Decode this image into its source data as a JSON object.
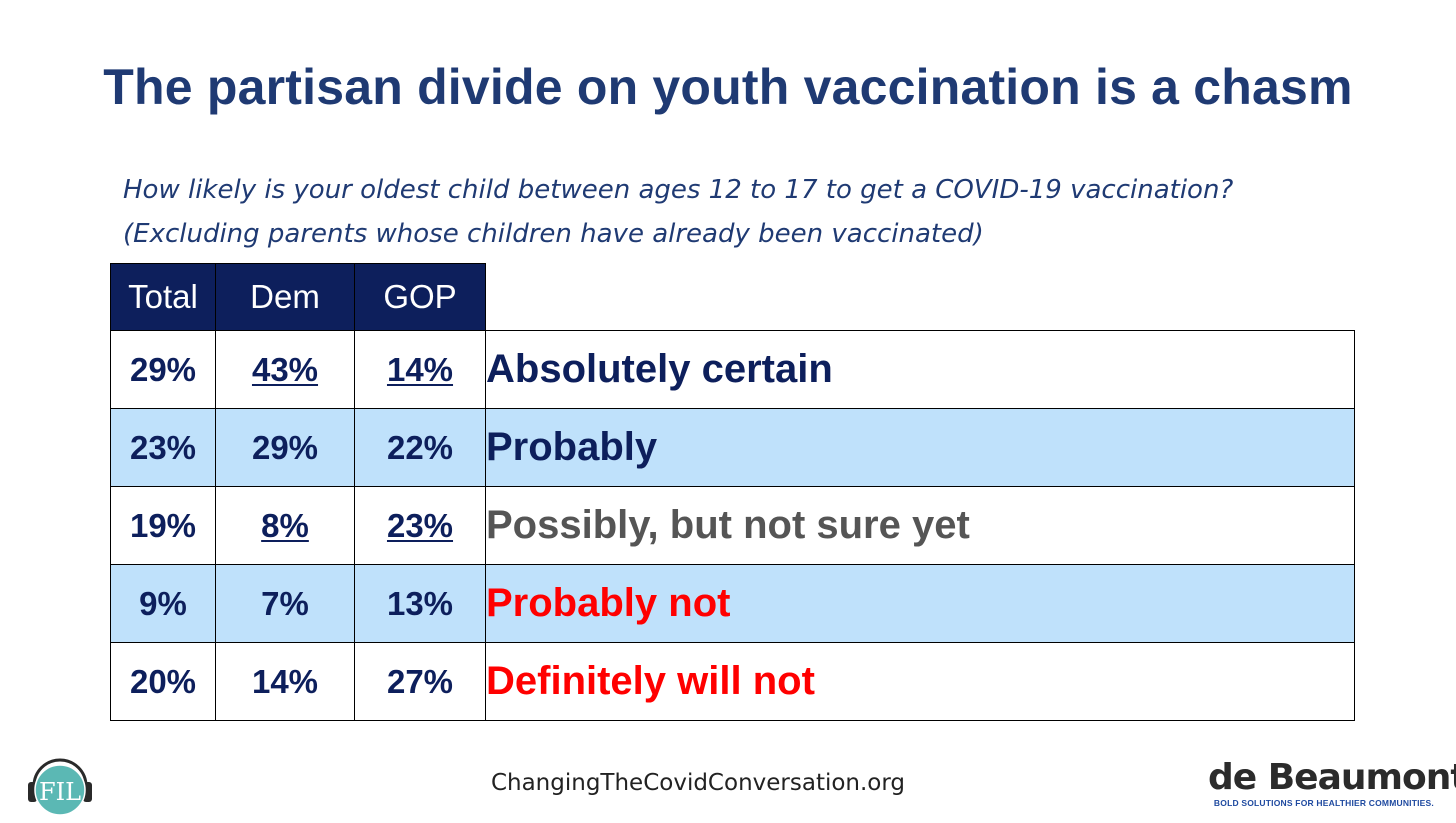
{
  "slide": {
    "title": "The partisan divide on youth vaccination is a chasm",
    "question_line1": "How likely is your oldest child between ages 12 to 17 to get a COVID-19 vaccination?",
    "question_line2": "(Excluding parents whose children have already been vaccinated)",
    "footer_url": "ChangingTheCovidConversation.org",
    "logo_right_name": "de Beaumont",
    "logo_right_tagline": "BOLD SOLUTIONS FOR HEALTHIER COMMUNITIES.",
    "logo_left_text": "FIL"
  },
  "chart_data": {
    "type": "table",
    "columns": [
      "Total",
      "Dem",
      "GOP"
    ],
    "rows": [
      {
        "label": "Absolutely certain",
        "label_color": "#0d1f5c",
        "values": [
          "29%",
          "43%",
          "14%"
        ],
        "underlined": [
          false,
          true,
          true
        ],
        "shaded": false
      },
      {
        "label": "Probably",
        "label_color": "#0d1f5c",
        "values": [
          "23%",
          "29%",
          "22%"
        ],
        "underlined": [
          false,
          false,
          false
        ],
        "shaded": true
      },
      {
        "label": "Possibly, but not sure yet",
        "label_color": "#555555",
        "values": [
          "19%",
          "8%",
          "23%"
        ],
        "underlined": [
          false,
          true,
          true
        ],
        "shaded": false
      },
      {
        "label": "Probably not",
        "label_color": "#ff0000",
        "values": [
          "9%",
          "7%",
          "13%"
        ],
        "underlined": [
          false,
          false,
          false
        ],
        "shaded": true
      },
      {
        "label": "Definitely will not",
        "label_color": "#ff0000",
        "values": [
          "20%",
          "14%",
          "27%"
        ],
        "underlined": [
          false,
          false,
          false
        ],
        "shaded": false
      }
    ],
    "colors": {
      "header_bg": "#0d1f5c",
      "shade_bg": "#bfe1fb",
      "title": "#1f3a73"
    }
  }
}
